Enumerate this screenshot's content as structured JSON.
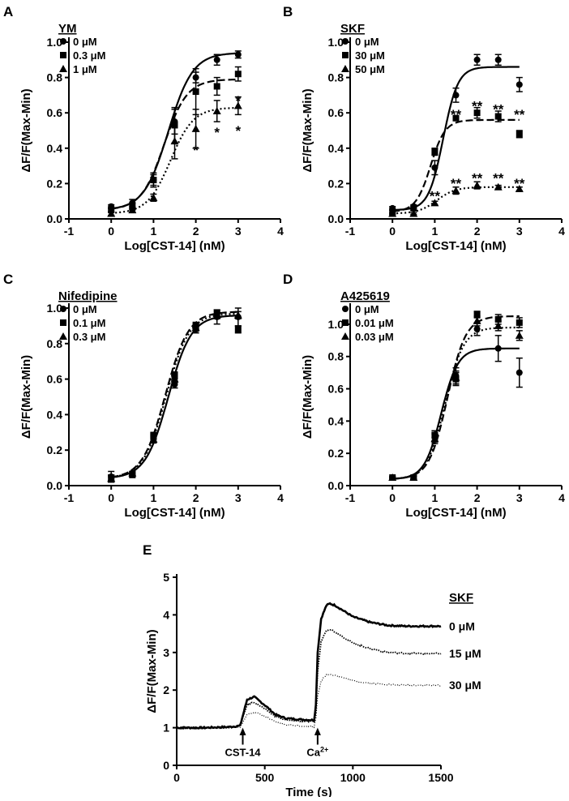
{
  "figure": {
    "description_free": true
  },
  "chart_data": [
    {
      "panel": "A",
      "type": "line",
      "title": "YM",
      "xlabel": "Log[CST-14] (nM)",
      "ylabel": "ΔF/F(Max-Min)",
      "xlim": [
        -1,
        4
      ],
      "ylim": [
        0,
        1.0
      ],
      "xticks": [
        "-1",
        "0",
        "1",
        "2",
        "3",
        "4"
      ],
      "yticks": [
        "0.0",
        "0.2",
        "0.4",
        "0.6",
        "0.8",
        "1.0"
      ],
      "x": [
        0,
        0.5,
        1,
        1.5,
        2,
        2.5,
        3
      ],
      "series": [
        {
          "name": "0 μM",
          "marker": "circle",
          "line": "solid",
          "values": [
            0.07,
            0.09,
            0.22,
            0.55,
            0.8,
            0.9,
            0.93
          ],
          "errors": [
            0.01,
            0.02,
            0.03,
            0.07,
            0.03,
            0.03,
            0.02
          ],
          "fit": {
            "bottom": 0.05,
            "top": 0.94,
            "ec50": 1.35,
            "hill": 1.5
          }
        },
        {
          "name": "0.3 μM",
          "marker": "square",
          "line": "dashed",
          "values": [
            0.05,
            0.07,
            0.22,
            0.53,
            0.72,
            0.75,
            0.82
          ],
          "errors": [
            0.01,
            0.02,
            0.04,
            0.1,
            0.13,
            0.05,
            0.04
          ],
          "fit": {
            "bottom": 0.05,
            "top": 0.79,
            "ec50": 1.25,
            "hill": 1.6
          }
        },
        {
          "name": "1 μM",
          "marker": "triangle",
          "line": "dotted",
          "values": [
            0.03,
            0.05,
            0.12,
            0.44,
            0.51,
            0.61,
            0.64
          ],
          "errors": [
            0.01,
            0.01,
            0.02,
            0.1,
            0.11,
            0.06,
            0.05
          ],
          "fit": {
            "bottom": 0.03,
            "top": 0.63,
            "ec50": 1.4,
            "hill": 1.6
          }
        }
      ],
      "annotations": [
        {
          "text": "*",
          "x": 2,
          "y": 0.4
        },
        {
          "text": "*",
          "x": 2.5,
          "y": 0.5
        },
        {
          "text": "*",
          "x": 3,
          "y": 0.68
        },
        {
          "text": "*",
          "x": 3,
          "y": 0.51
        }
      ]
    },
    {
      "panel": "B",
      "type": "line",
      "title": "SKF",
      "xlabel": "Log[CST-14] (nM)",
      "ylabel": "ΔF/F(Max-Min)",
      "xlim": [
        -1,
        4
      ],
      "ylim": [
        0,
        1.0
      ],
      "xticks": [
        "-1",
        "0",
        "1",
        "2",
        "3",
        "4"
      ],
      "yticks": [
        "0.0",
        "0.2",
        "0.4",
        "0.6",
        "0.8",
        "1.0"
      ],
      "x": [
        0,
        0.5,
        1,
        1.5,
        2,
        2.5,
        3
      ],
      "series": [
        {
          "name": "0 μM",
          "marker": "circle",
          "line": "solid",
          "values": [
            0.06,
            0.07,
            0.29,
            0.7,
            0.9,
            0.9,
            0.76
          ],
          "errors": [
            0.01,
            0.01,
            0.04,
            0.04,
            0.03,
            0.03,
            0.04
          ],
          "fit": {
            "bottom": 0.05,
            "top": 0.86,
            "ec50": 1.2,
            "hill": 2.5
          }
        },
        {
          "name": "30 μM",
          "marker": "square",
          "line": "dashed",
          "values": [
            0.04,
            0.06,
            0.38,
            0.57,
            0.6,
            0.58,
            0.48
          ],
          "errors": [
            0.01,
            0.01,
            0.02,
            0.01,
            0.03,
            0.03,
            0.02
          ],
          "fit": {
            "bottom": 0.04,
            "top": 0.56,
            "ec50": 0.9,
            "hill": 2.5
          }
        },
        {
          "name": "50 μM",
          "marker": "triangle",
          "line": "dotted",
          "values": [
            0.03,
            0.03,
            0.09,
            0.16,
            0.19,
            0.18,
            0.17
          ],
          "errors": [
            0.005,
            0.005,
            0.01,
            0.02,
            0.02,
            0.01,
            0.01
          ],
          "fit": {
            "bottom": 0.03,
            "top": 0.18,
            "ec50": 1.05,
            "hill": 2.0
          }
        }
      ],
      "annotations": [
        {
          "text": "**",
          "x": 1.5,
          "y": 0.6
        },
        {
          "text": "**",
          "x": 2,
          "y": 0.65
        },
        {
          "text": "**",
          "x": 2.5,
          "y": 0.63
        },
        {
          "text": "**",
          "x": 3,
          "y": 0.6
        },
        {
          "text": "**",
          "x": 1,
          "y": 0.14
        },
        {
          "text": "**",
          "x": 1.5,
          "y": 0.21
        },
        {
          "text": "**",
          "x": 2,
          "y": 0.24
        },
        {
          "text": "**",
          "x": 2.5,
          "y": 0.24
        },
        {
          "text": "**",
          "x": 3,
          "y": 0.21
        }
      ]
    },
    {
      "panel": "C",
      "type": "line",
      "title": "Nifedipine",
      "xlabel": "Log[CST-14] (nM)",
      "ylabel": "ΔF/F(Max-Min)",
      "xlim": [
        -1,
        4
      ],
      "ylim": [
        0,
        1.0
      ],
      "xticks": [
        "-1",
        "0",
        "1",
        "2",
        "3",
        "4"
      ],
      "yticks": [
        "0.0",
        "0.2",
        "0.4",
        "0.6",
        "0.8",
        "1.0"
      ],
      "x": [
        0,
        0.5,
        1,
        1.5,
        2,
        2.5,
        3
      ],
      "series": [
        {
          "name": "0 μM",
          "marker": "circle",
          "line": "solid",
          "values": [
            0.05,
            0.07,
            0.27,
            0.57,
            0.88,
            0.95,
            0.95
          ],
          "errors": [
            0.03,
            0.01,
            0.02,
            0.02,
            0.02,
            0.04,
            0.05
          ],
          "fit": {
            "bottom": 0.04,
            "top": 0.96,
            "ec50": 1.35,
            "hill": 1.6
          }
        },
        {
          "name": "0.1 μM",
          "marker": "square",
          "line": "dashed",
          "values": [
            0.04,
            0.06,
            0.28,
            0.62,
            0.9,
            0.97,
            0.88
          ],
          "errors": [
            0.02,
            0.01,
            0.02,
            0.02,
            0.02,
            0.02,
            0.02
          ],
          "fit": {
            "bottom": 0.04,
            "top": 0.98,
            "ec50": 1.28,
            "hill": 1.6
          }
        },
        {
          "name": "0.3 μM",
          "marker": "triangle",
          "line": "dotted",
          "values": [
            0.04,
            0.07,
            0.26,
            0.6,
            0.89,
            0.96,
            0.96
          ],
          "errors": [
            0.02,
            0.01,
            0.02,
            0.02,
            0.02,
            0.02,
            0.02
          ],
          "fit": {
            "bottom": 0.04,
            "top": 0.97,
            "ec50": 1.3,
            "hill": 1.6
          }
        }
      ],
      "annotations": []
    },
    {
      "panel": "D",
      "type": "line",
      "title": "A425619",
      "xlabel": "Log[CST-14] (nM)",
      "ylabel": "ΔF/F(Max-Min)",
      "xlim": [
        -1,
        4
      ],
      "ylim": [
        0,
        1.1
      ],
      "xticks": [
        "-1",
        "0",
        "1",
        "2",
        "3",
        "4"
      ],
      "yticks": [
        "0.0",
        "0.2",
        "0.4",
        "0.6",
        "0.8",
        "1.0"
      ],
      "x": [
        0,
        0.5,
        1,
        1.5,
        2,
        2.5,
        3
      ],
      "series": [
        {
          "name": "0 μM",
          "marker": "circle",
          "line": "solid",
          "values": [
            0.05,
            0.05,
            0.3,
            0.68,
            0.97,
            0.85,
            0.7
          ],
          "errors": [
            0.005,
            0.01,
            0.03,
            0.05,
            0.04,
            0.08,
            0.09
          ],
          "fit": {
            "bottom": 0.04,
            "top": 0.85,
            "ec50": 1.15,
            "hill": 2.2
          }
        },
        {
          "name": "0.01 μM",
          "marker": "square",
          "line": "dashed",
          "values": [
            0.05,
            0.05,
            0.31,
            0.66,
            1.06,
            1.03,
            1.01
          ],
          "errors": [
            0.005,
            0.01,
            0.03,
            0.04,
            0.02,
            0.03,
            0.03
          ],
          "fit": {
            "bottom": 0.04,
            "top": 1.05,
            "ec50": 1.3,
            "hill": 2.0
          }
        },
        {
          "name": "0.03 μM",
          "marker": "triangle",
          "line": "dotted",
          "values": [
            0.05,
            0.05,
            0.29,
            0.67,
            1.02,
            0.99,
            0.93
          ],
          "errors": [
            0.005,
            0.01,
            0.03,
            0.04,
            0.03,
            0.03,
            0.03
          ],
          "fit": {
            "bottom": 0.04,
            "top": 0.98,
            "ec50": 1.25,
            "hill": 2.0
          }
        }
      ],
      "annotations": []
    },
    {
      "panel": "E",
      "type": "line",
      "title": "SKF",
      "xlabel": "Time (s)",
      "ylabel": "ΔF/F(Max-Min)",
      "xlim": [
        0,
        1500
      ],
      "ylim": [
        0,
        5
      ],
      "xticks": [
        "0",
        "500",
        "1000",
        "1500"
      ],
      "yticks": [
        "0",
        "1",
        "2",
        "3",
        "4",
        "5"
      ],
      "series": [
        {
          "name": "0 μM",
          "line": "solid",
          "x": [
            0,
            150,
            300,
            360,
            400,
            440,
            500,
            560,
            620,
            700,
            780,
            790,
            800,
            820,
            850,
            870,
            900,
            950,
            1000,
            1100,
            1200,
            1300,
            1400,
            1500
          ],
          "values": [
            1.0,
            1.0,
            1.02,
            1.05,
            1.75,
            1.82,
            1.6,
            1.35,
            1.25,
            1.22,
            1.2,
            1.6,
            3.0,
            3.9,
            4.25,
            4.3,
            4.25,
            4.1,
            3.95,
            3.8,
            3.72,
            3.7,
            3.7,
            3.7
          ]
        },
        {
          "name": "15 μM",
          "line": "dotted-dense",
          "x": [
            0,
            150,
            300,
            360,
            400,
            440,
            500,
            560,
            620,
            700,
            780,
            790,
            800,
            820,
            850,
            870,
            900,
            950,
            1000,
            1100,
            1200,
            1300,
            1400,
            1500
          ],
          "values": [
            1.0,
            1.0,
            1.02,
            1.05,
            1.62,
            1.68,
            1.5,
            1.3,
            1.2,
            1.18,
            1.15,
            1.45,
            2.5,
            3.3,
            3.6,
            3.62,
            3.55,
            3.4,
            3.25,
            3.1,
            3.0,
            2.98,
            2.97,
            2.97
          ]
        },
        {
          "name": "30 μM",
          "line": "dotted-fine",
          "x": [
            0,
            150,
            300,
            360,
            400,
            440,
            500,
            560,
            620,
            700,
            780,
            790,
            800,
            820,
            850,
            870,
            900,
            950,
            1000,
            1100,
            1200,
            1300,
            1400,
            1500
          ],
          "values": [
            0.98,
            0.98,
            1.0,
            1.02,
            1.35,
            1.42,
            1.3,
            1.15,
            1.08,
            1.05,
            1.03,
            1.25,
            1.85,
            2.25,
            2.4,
            2.42,
            2.4,
            2.32,
            2.25,
            2.18,
            2.15,
            2.13,
            2.13,
            2.13
          ]
        }
      ],
      "event_labels": [
        {
          "text": "CST-14",
          "x": 375
        },
        {
          "text": "Ca",
          "superscript": "2+",
          "x": 800
        }
      ]
    }
  ]
}
